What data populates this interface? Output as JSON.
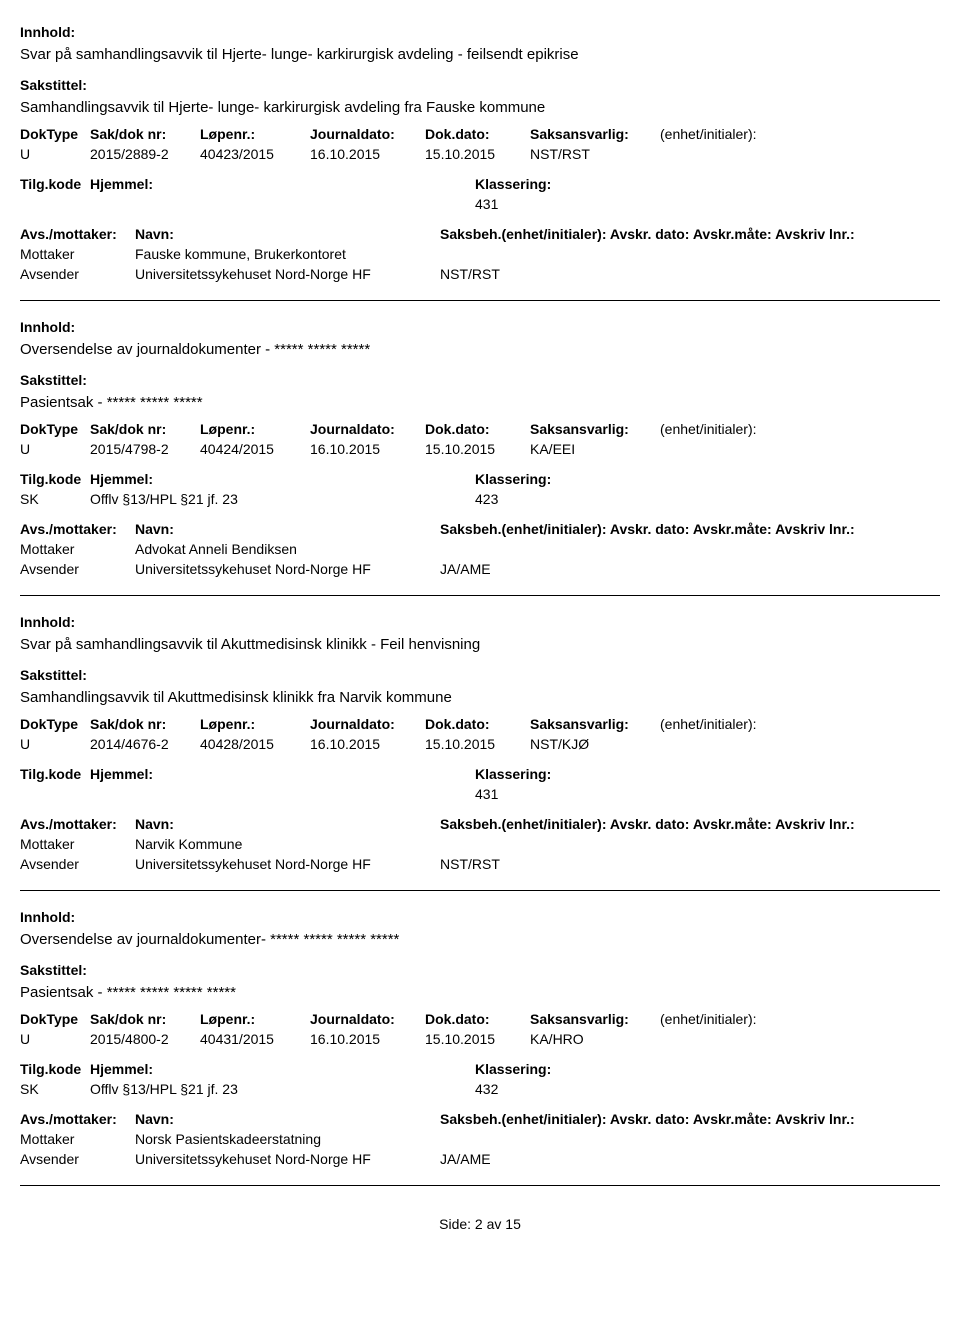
{
  "labels": {
    "innhold": "Innhold:",
    "sakstittel": "Sakstittel:",
    "doktype": "DokType",
    "sakdok": "Sak/dok nr:",
    "lopenr": "Løpenr.:",
    "journaldato": "Journaldato:",
    "dokdato": "Dok.dato:",
    "saksansvarlig": "Saksansvarlig:",
    "enhet_init": "(enhet/initialer):",
    "tilgkode": "Tilg.kode",
    "hjemmel": "Hjemmel:",
    "klassering": "Klassering:",
    "avs_mottaker": "Avs./mottaker:",
    "navn": "Navn:",
    "saksbeh_line": "Saksbeh.(enhet/initialer): Avskr. dato:  Avskr.måte:  Avskriv lnr.:"
  },
  "roles": {
    "mottaker": "Mottaker",
    "avsender": "Avsender"
  },
  "records": [
    {
      "content": "Svar på samhandlingsavvik til Hjerte- lunge- karkirurgisk avdeling - feilsendt epikrise",
      "title": "Samhandlingsavvik til Hjerte- lunge- karkirurgisk avdeling fra Fauske kommune",
      "doktype": "U",
      "sakdok": "2015/2889-2",
      "lopenr": "40423/2015",
      "journaldato": "16.10.2015",
      "dokdato": "15.10.2015",
      "saksansvarlig": "NST/RST",
      "tilgkode": "",
      "hjemmel": "",
      "klassering": "431",
      "mottaker": "Fauske kommune, Brukerkontoret",
      "avsender": "Universitetssykehuset Nord-Norge HF",
      "avsender_code": "NST/RST"
    },
    {
      "content": "Oversendelse av journaldokumenter - ***** ***** *****",
      "title": "Pasientsak - ***** ***** *****",
      "doktype": "U",
      "sakdok": "2015/4798-2",
      "lopenr": "40424/2015",
      "journaldato": "16.10.2015",
      "dokdato": "15.10.2015",
      "saksansvarlig": "KA/EEI",
      "tilgkode": "SK",
      "hjemmel": "Offlv §13/HPL §21 jf. 23",
      "klassering": "423",
      "mottaker": "Advokat Anneli Bendiksen",
      "avsender": "Universitetssykehuset Nord-Norge HF",
      "avsender_code": "JA/AME"
    },
    {
      "content": "Svar på samhandlingsavvik til Akuttmedisinsk klinikk - Feil henvisning",
      "title": "Samhandlingsavvik til Akuttmedisinsk klinikk fra Narvik kommune",
      "doktype": "U",
      "sakdok": "2014/4676-2",
      "lopenr": "40428/2015",
      "journaldato": "16.10.2015",
      "dokdato": "15.10.2015",
      "saksansvarlig": "NST/KJØ",
      "tilgkode": "",
      "hjemmel": "",
      "klassering": "431",
      "mottaker": "Narvik Kommune",
      "avsender": "Universitetssykehuset Nord-Norge HF",
      "avsender_code": "NST/RST"
    },
    {
      "content": "Oversendelse av journaldokumenter- ***** ***** ***** *****",
      "title": "Pasientsak - ***** ***** ***** *****",
      "doktype": "U",
      "sakdok": "2015/4800-2",
      "lopenr": "40431/2015",
      "journaldato": "16.10.2015",
      "dokdato": "15.10.2015",
      "saksansvarlig": "KA/HRO",
      "tilgkode": "SK",
      "hjemmel": "Offlv §13/HPL §21 jf. 23",
      "klassering": "432",
      "mottaker": "Norsk Pasientskadeerstatning",
      "avsender": "Universitetssykehuset Nord-Norge HF",
      "avsender_code": "JA/AME"
    }
  ],
  "footer": {
    "side": "Side:",
    "page": "2",
    "av": "av",
    "total": "15",
    "combined": "Side:   2 av   15"
  }
}
